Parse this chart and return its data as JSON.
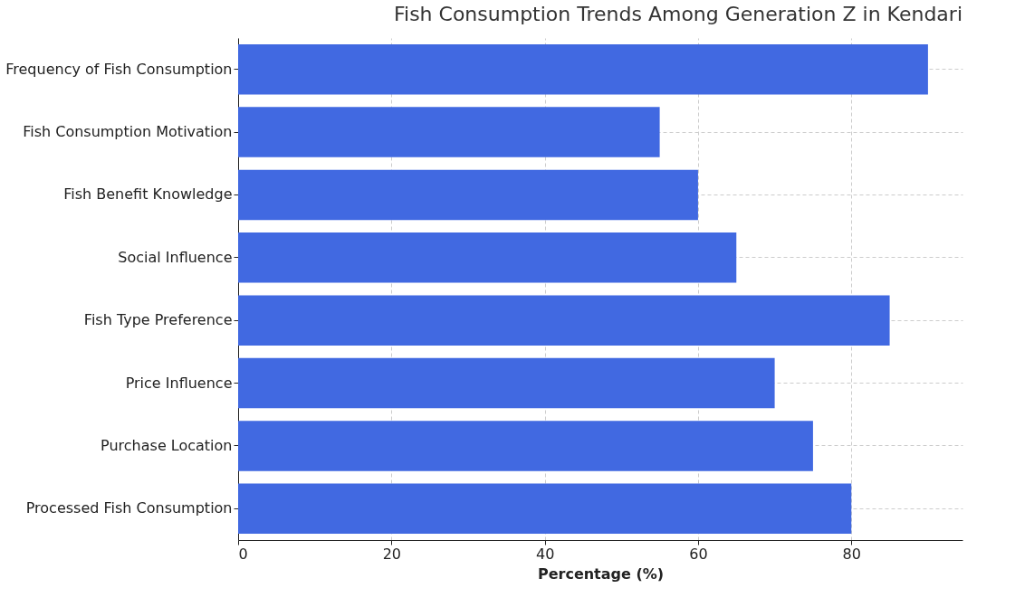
{
  "chart_data": {
    "type": "bar",
    "orientation": "horizontal",
    "title": "Fish Consumption Trends Among Generation Z in Kendari",
    "xlabel": "Percentage (%)",
    "categories": [
      "Frequency of Fish Consumption",
      "Fish Consumption Motivation",
      "Fish Benefit Knowledge",
      "Social Influence",
      "Fish Type Preference",
      "Price Influence",
      "Purchase Location",
      "Processed Fish Consumption"
    ],
    "values": [
      90,
      55,
      60,
      65,
      85,
      70,
      75,
      80
    ],
    "color": "#4169e1",
    "xlim": [
      0,
      94.5
    ],
    "xticks": [
      0,
      20,
      40,
      60,
      80
    ],
    "grid": true
  }
}
